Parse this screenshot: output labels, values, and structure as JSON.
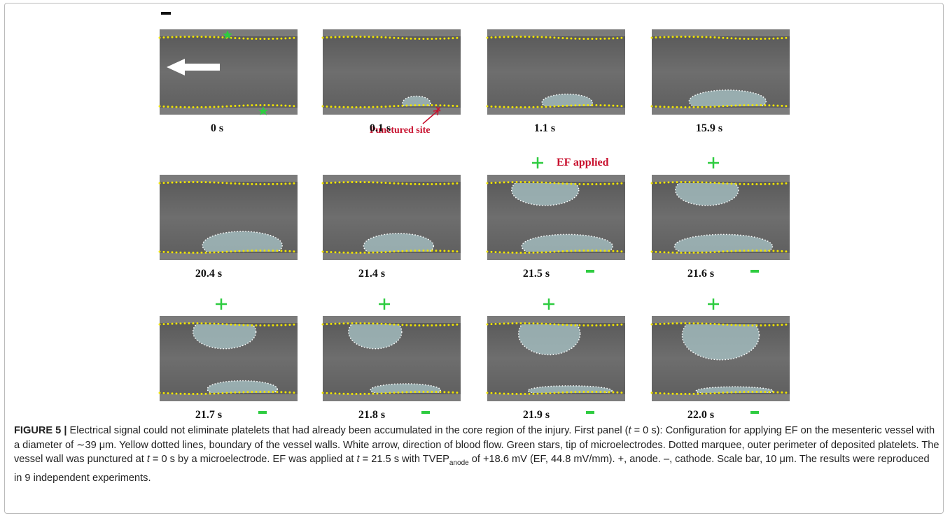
{
  "panels": [
    {
      "time": "0 s"
    },
    {
      "time": "0.1 s"
    },
    {
      "time": "1.1 s"
    },
    {
      "time": "15.9 s"
    },
    {
      "time": "20.4 s"
    },
    {
      "time": "21.4 s"
    },
    {
      "time": "21.5 s"
    },
    {
      "time": "21.6 s"
    },
    {
      "time": "21.7 s"
    },
    {
      "time": "21.8 s"
    },
    {
      "time": "21.9 s"
    },
    {
      "time": "22.0 s"
    }
  ],
  "annotations": {
    "punctured_site": "Punctured site",
    "ef_applied": "EF applied"
  },
  "caption": {
    "label": "FIGURE 5 |",
    "text": [
      " Electrical signal could not eliminate platelets that had already been accumulated in the core region of the injury. First panel (",
      "t",
      " = 0 s): Configuration for applying EF on the mesenteric vessel with a diameter of ∼39 μm. Yellow dotted lines, boundary of the vessel walls. White arrow, direction of blood flow. Green stars, tip of microelectrodes. Dotted marquee, outer perimeter of deposited platelets. The vessel wall was punctured at ",
      "t",
      " = 0 s by a microelectrode. EF was applied at ",
      "t",
      " = 21.5 s with TVEP",
      "anode",
      " of +18.6 mV (EF, 44.8 mV/mm). +, anode. –, cathode. Scale bar, 10 μm. The results were reproduced in 9 independent experiments."
    ]
  }
}
